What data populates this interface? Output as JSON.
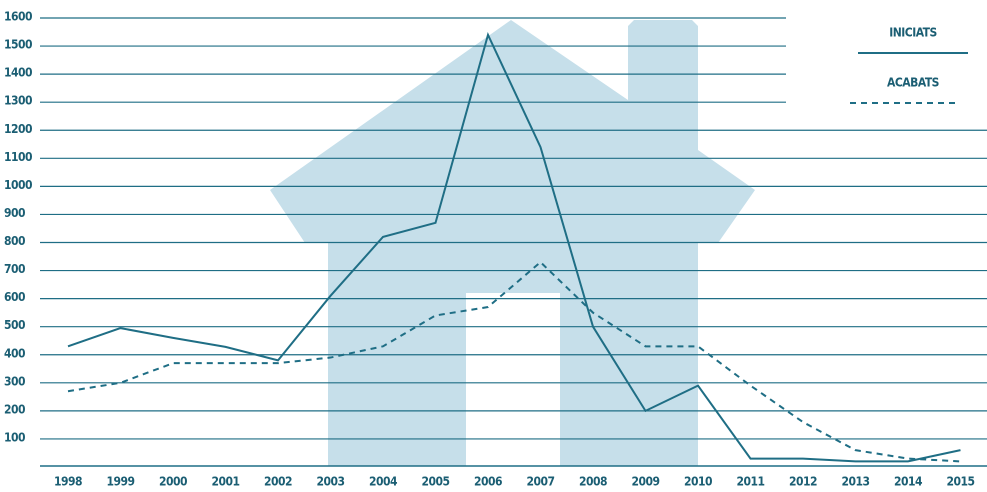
{
  "chart_data": {
    "type": "line",
    "categories": [
      "1998",
      "1999",
      "2000",
      "2001",
      "2002",
      "2003",
      "2004",
      "2005",
      "2006",
      "2007",
      "2008",
      "2009",
      "2010",
      "2011",
      "2012",
      "2013",
      "2014",
      "2015"
    ],
    "series": [
      {
        "name": "INICIATS",
        "color": "#1f6e85",
        "dash": false,
        "values": [
          430,
          495,
          460,
          428,
          380,
          610,
          820,
          870,
          1540,
          1140,
          500,
          200,
          290,
          30,
          30,
          20,
          20,
          60
        ]
      },
      {
        "name": "ACABATS",
        "color": "#1f6e85",
        "dash": true,
        "values": [
          270,
          300,
          370,
          370,
          370,
          390,
          430,
          540,
          570,
          730,
          550,
          430,
          430,
          290,
          160,
          60,
          30,
          20
        ]
      }
    ],
    "ylim": [
      0,
      1600
    ],
    "yticks": [
      100,
      200,
      300,
      400,
      500,
      600,
      700,
      800,
      900,
      1000,
      1100,
      1200,
      1300,
      1400,
      1500,
      1600
    ],
    "grid": true
  }
}
